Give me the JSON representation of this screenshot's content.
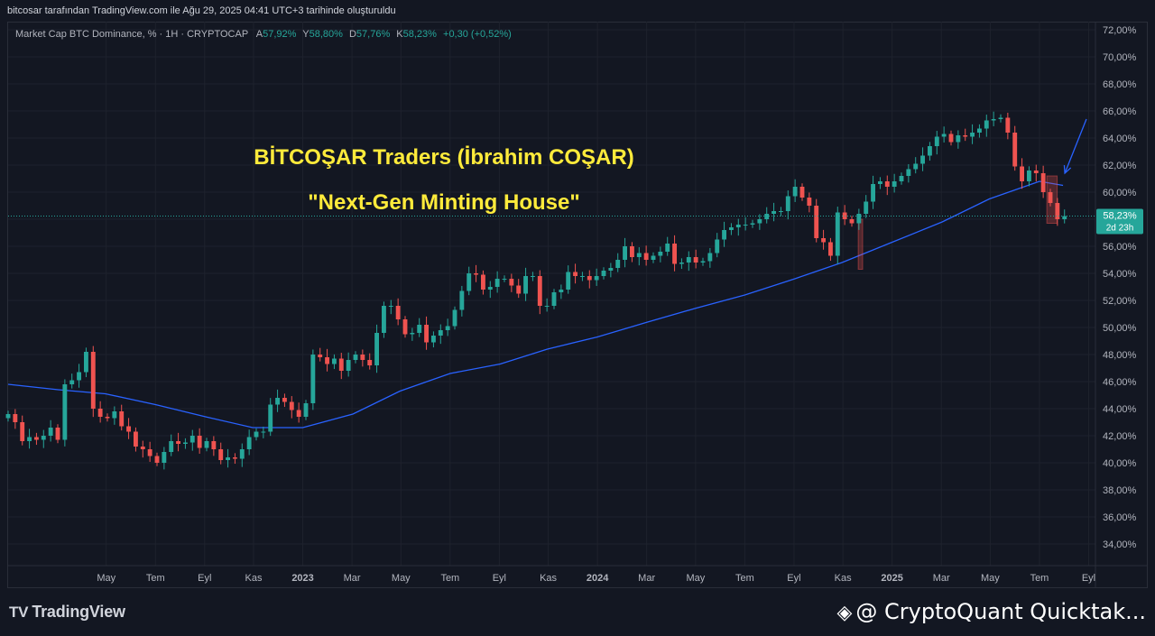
{
  "header": {
    "attribution": "bitcosar tarafından TradingView.com ile Ağu 29, 2025 04:41 UTC+3 tarihinde oluşturuldu"
  },
  "legend": {
    "symbol": "Market Cap BTC Dominance, % · 1H · CRYPTOCAP",
    "o_label": "A",
    "o_value": "57,92%",
    "h_label": "Y",
    "h_value": "58,80%",
    "l_label": "D",
    "l_value": "57,76%",
    "c_label": "K",
    "c_value": "58,23%",
    "change": "+0,30 (+0,52%)"
  },
  "overlay": {
    "line1": "BİTCOŞAR Traders (İbrahim COŞAR)",
    "line2": "\"Next-Gen Minting House\""
  },
  "price_badge": {
    "value": "58,23%",
    "countdown": "2d 23h"
  },
  "footer": {
    "brand": "TradingView",
    "watermark": "@ CryptoQuant Quicktak..."
  },
  "colors": {
    "background": "#131722",
    "up": "#26a69a",
    "down": "#ef5350",
    "ma": "#2962ff",
    "title": "#ffeb3b"
  },
  "icons": {
    "tv": "tradingview-logo-icon",
    "cq": "binance-diamond-icon"
  },
  "chart_data": {
    "type": "candlestick",
    "y_ticks": [
      "34,00%",
      "36,00%",
      "38,00%",
      "40,00%",
      "42,00%",
      "44,00%",
      "46,00%",
      "48,00%",
      "50,00%",
      "52,00%",
      "54,00%",
      "56,00%",
      "58,00%",
      "60,00%",
      "62,00%",
      "64,00%",
      "66,00%",
      "68,00%",
      "70,00%",
      "72,00%"
    ],
    "ylim": [
      33,
      72.5
    ],
    "x_ticks": [
      {
        "label": "May",
        "t": 0.333,
        "bold": false
      },
      {
        "label": "Tem",
        "t": 0.5,
        "bold": false
      },
      {
        "label": "Eyl",
        "t": 0.667,
        "bold": false
      },
      {
        "label": "Kas",
        "t": 0.833,
        "bold": false
      },
      {
        "label": "2023",
        "t": 1.0,
        "bold": true
      },
      {
        "label": "Mar",
        "t": 1.167,
        "bold": false
      },
      {
        "label": "May",
        "t": 1.333,
        "bold": false
      },
      {
        "label": "Tem",
        "t": 1.5,
        "bold": false
      },
      {
        "label": "Eyl",
        "t": 1.667,
        "bold": false
      },
      {
        "label": "Kas",
        "t": 1.833,
        "bold": false
      },
      {
        "label": "2024",
        "t": 2.0,
        "bold": true
      },
      {
        "label": "Mar",
        "t": 2.167,
        "bold": false
      },
      {
        "label": "May",
        "t": 2.333,
        "bold": false
      },
      {
        "label": "Tem",
        "t": 2.5,
        "bold": false
      },
      {
        "label": "Eyl",
        "t": 2.667,
        "bold": false
      },
      {
        "label": "Kas",
        "t": 2.833,
        "bold": false
      },
      {
        "label": "2025",
        "t": 3.0,
        "bold": true
      },
      {
        "label": "Mar",
        "t": 3.167,
        "bold": false
      },
      {
        "label": "May",
        "t": 3.333,
        "bold": false
      },
      {
        "label": "Tem",
        "t": 3.5,
        "bold": false
      },
      {
        "label": "Eyl",
        "t": 3.667,
        "bold": false
      }
    ],
    "xlim": [
      0.0,
      3.69
    ],
    "candle_close": [
      43.6,
      43.0,
      41.6,
      41.9,
      41.7,
      42.0,
      42.6,
      41.7,
      45.8,
      46.1,
      46.7,
      48.2,
      44.0,
      43.4,
      43.3,
      43.8,
      42.7,
      42.3,
      41.2,
      41.0,
      40.5,
      40.0,
      40.8,
      41.6,
      41.4,
      41.5,
      42.0,
      41.1,
      41.6,
      41.0,
      40.2,
      40.4,
      40.3,
      41.0,
      41.9,
      42.3,
      42.3,
      44.3,
      44.8,
      44.5,
      43.9,
      43.4,
      44.4,
      48.0,
      47.8,
      47.3,
      47.7,
      46.8,
      47.6,
      48.0,
      47.6,
      47.2,
      49.6,
      51.6,
      51.6,
      50.6,
      49.5,
      49.6,
      50.2,
      48.9,
      49.4,
      49.8,
      50.1,
      51.3,
      52.7,
      54.0,
      53.9,
      52.8,
      53.0,
      53.6,
      53.6,
      53.1,
      52.5,
      53.8,
      53.8,
      51.6,
      51.6,
      52.6,
      52.8,
      54.1,
      53.8,
      53.8,
      53.5,
      53.8,
      54.2,
      54.4,
      55.0,
      56.0,
      55.2,
      55.5,
      55.0,
      55.3,
      55.6,
      56.2,
      54.7,
      54.8,
      55.2,
      54.8,
      54.9,
      55.5,
      56.5,
      57.2,
      57.4,
      57.6,
      57.6,
      57.7,
      58.0,
      58.4,
      58.6,
      58.6,
      59.7,
      60.4,
      59.6,
      59.0,
      56.6,
      56.3,
      55.3,
      58.5,
      58.0,
      57.7,
      58.4,
      59.3,
      60.6,
      60.8,
      60.4,
      60.8,
      61.2,
      61.7,
      62.1,
      62.7,
      63.4,
      64.1,
      64.3,
      63.7,
      64.2,
      64.1,
      64.4,
      64.7,
      65.3,
      65.4,
      65.5,
      64.4,
      61.9,
      60.8,
      61.6,
      61.4,
      60.0,
      59.2,
      58.0,
      58.23
    ],
    "moving_average": [
      {
        "t": 0.0,
        "v": 45.8
      },
      {
        "t": 0.17,
        "v": 45.4
      },
      {
        "t": 0.33,
        "v": 45.1
      },
      {
        "t": 0.5,
        "v": 44.3
      },
      {
        "t": 0.67,
        "v": 43.4
      },
      {
        "t": 0.83,
        "v": 42.6
      },
      {
        "t": 1.0,
        "v": 42.6
      },
      {
        "t": 1.17,
        "v": 43.6
      },
      {
        "t": 1.33,
        "v": 45.3
      },
      {
        "t": 1.5,
        "v": 46.6
      },
      {
        "t": 1.67,
        "v": 47.3
      },
      {
        "t": 1.83,
        "v": 48.4
      },
      {
        "t": 2.0,
        "v": 49.3
      },
      {
        "t": 2.17,
        "v": 50.4
      },
      {
        "t": 2.33,
        "v": 51.4
      },
      {
        "t": 2.5,
        "v": 52.4
      },
      {
        "t": 2.67,
        "v": 53.6
      },
      {
        "t": 2.83,
        "v": 54.8
      },
      {
        "t": 3.0,
        "v": 56.3
      },
      {
        "t": 3.17,
        "v": 57.8
      },
      {
        "t": 3.33,
        "v": 59.5
      },
      {
        "t": 3.5,
        "v": 60.8
      },
      {
        "t": 3.58,
        "v": 60.5
      }
    ],
    "last_value": 58.23,
    "highlight_boxes": [
      {
        "t0": 2.885,
        "t1": 2.9,
        "v0": 54.3,
        "v1": 58.0
      },
      {
        "t0": 3.525,
        "t1": 3.56,
        "v0": 57.7,
        "v1": 61.2
      }
    ],
    "arrow": {
      "from_t": 3.69,
      "from_v": 65.4,
      "to_t": 3.58,
      "to_v": 61.4
    }
  }
}
